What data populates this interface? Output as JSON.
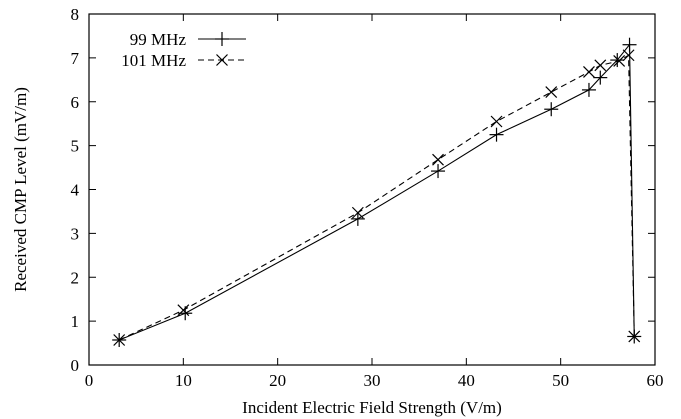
{
  "chart_data": {
    "type": "line",
    "xlabel": "Incident Electric Field Strength (V/m)",
    "ylabel": "Received CMP Level (mV/m)",
    "xlim": [
      0,
      60
    ],
    "ylim": [
      0,
      8
    ],
    "xticks": [
      0,
      10,
      20,
      30,
      40,
      50,
      60
    ],
    "yticks": [
      0,
      1,
      2,
      3,
      4,
      5,
      6,
      7,
      8
    ],
    "grid": false,
    "legend_position": "top-left",
    "series": [
      {
        "name": "99 MHz",
        "marker": "plus",
        "line_style": "solid",
        "x": [
          3.2,
          10.2,
          28.5,
          37.0,
          43.2,
          49.0,
          53.0,
          54.2,
          56.0,
          57.3,
          57.8
        ],
        "y": [
          0.57,
          1.18,
          3.33,
          4.42,
          5.25,
          5.83,
          6.27,
          6.55,
          6.95,
          7.3,
          0.65
        ]
      },
      {
        "name": "101 MHz",
        "marker": "cross",
        "line_style": "dashed",
        "x": [
          3.2,
          10.0,
          28.5,
          37.0,
          43.2,
          49.0,
          53.0,
          54.2,
          56.2,
          57.2,
          57.8
        ],
        "y": [
          0.57,
          1.25,
          3.47,
          4.68,
          5.55,
          6.22,
          6.68,
          6.83,
          6.93,
          7.06,
          0.65
        ]
      }
    ]
  }
}
